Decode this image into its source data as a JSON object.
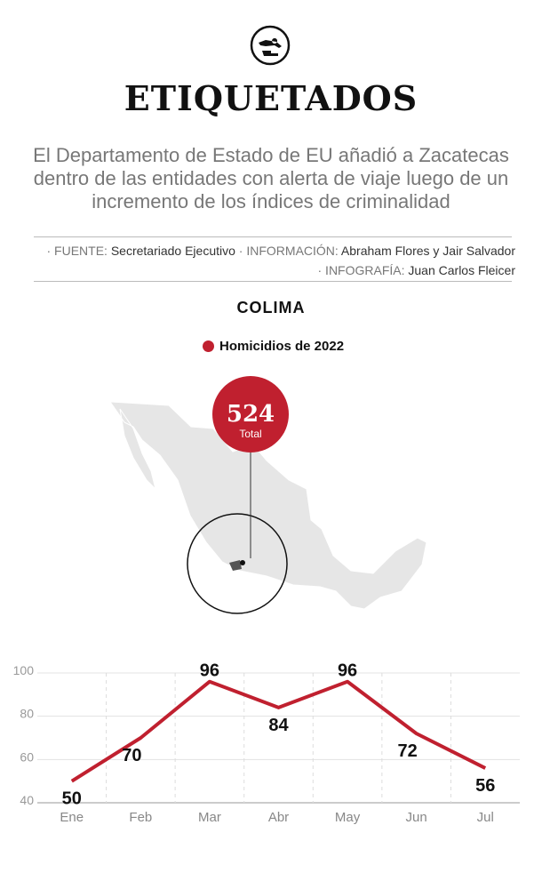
{
  "header": {
    "logo": "crime-scene-body-icon",
    "title": "ETIQUETADOS",
    "subtitle": "El Departamento de Estado de EU añadió a Zacatecas dentro de las entidades con alerta de viaje luego de un incremento de los índices de criminalidad"
  },
  "credits": {
    "fuente_label": "· FUENTE:",
    "fuente": "Secretariado Ejecutivo",
    "info_label": "· INFORMACIÓN:",
    "info": "Abraham Flores y Jair Salvador",
    "infog_label": "· INFOGRAFÍA:",
    "infog": "Juan Carlos Fleicer"
  },
  "state": "COLIMA",
  "legend": "Homicidios de 2022",
  "total": {
    "value": "524",
    "label": "Total"
  },
  "colors": {
    "accent": "#c0202f",
    "map": "#e6e6e6"
  },
  "chart_data": {
    "type": "line",
    "categories": [
      "Ene",
      "Feb",
      "Mar",
      "Abr",
      "May",
      "Jun",
      "Jul"
    ],
    "values": [
      50,
      70,
      96,
      84,
      96,
      72,
      56
    ],
    "ylim": [
      40,
      100
    ],
    "yticks": [
      40,
      60,
      80,
      100
    ],
    "grid": true,
    "series": [
      {
        "values": [
          50,
          70,
          96,
          84,
          96,
          72,
          56
        ]
      }
    ]
  }
}
